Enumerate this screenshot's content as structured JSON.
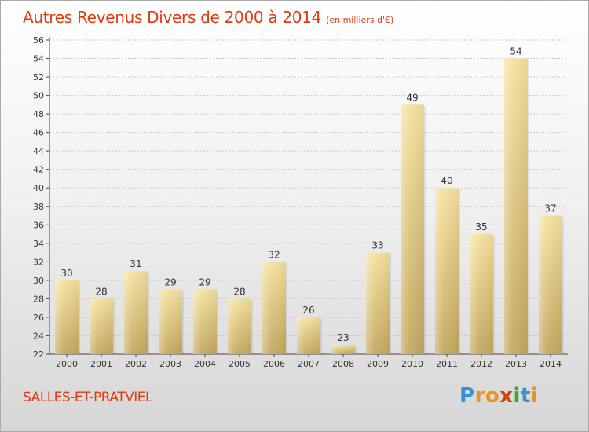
{
  "title": "Autres Revenus Divers de 2000 à 2014",
  "subtitle": "(en milliers d'€)",
  "commune": "SALLES-ET-PRATVIEL",
  "logo": {
    "letters": [
      "P",
      "r",
      "o",
      "x",
      "i",
      "t",
      "i"
    ],
    "colors": [
      "#3a8fd6",
      "#e8941e",
      "#e8941e",
      "#e03b10",
      "#3aa63a",
      "#3a8fd6",
      "#e8941e"
    ]
  },
  "colors": {
    "title": "#e03b10",
    "bar_top": "#f7e2a0",
    "bar_bottom": "#c4a960",
    "axis": "#444444",
    "grid": "#c8c8c8"
  },
  "chart_data": {
    "type": "bar",
    "categories": [
      "2000",
      "2001",
      "2002",
      "2003",
      "2004",
      "2005",
      "2006",
      "2007",
      "2008",
      "2009",
      "2010",
      "2011",
      "2012",
      "2013",
      "2014"
    ],
    "values": [
      30,
      28,
      31,
      29,
      29,
      28,
      32,
      26,
      23,
      33,
      49,
      40,
      35,
      54,
      37
    ],
    "data_labels": [
      "30",
      "28",
      "31",
      "29",
      "29",
      "28",
      "32",
      "26",
      "23",
      "33",
      "49",
      "40",
      "35",
      "54",
      "37"
    ],
    "y_ticks": [
      "22",
      "24",
      "26",
      "28",
      "30",
      "32",
      "34",
      "36",
      "38",
      "40",
      "42",
      "44",
      "46",
      "48",
      "50",
      "52",
      "54",
      "56"
    ],
    "ylim": [
      22,
      56
    ],
    "grid": true
  }
}
